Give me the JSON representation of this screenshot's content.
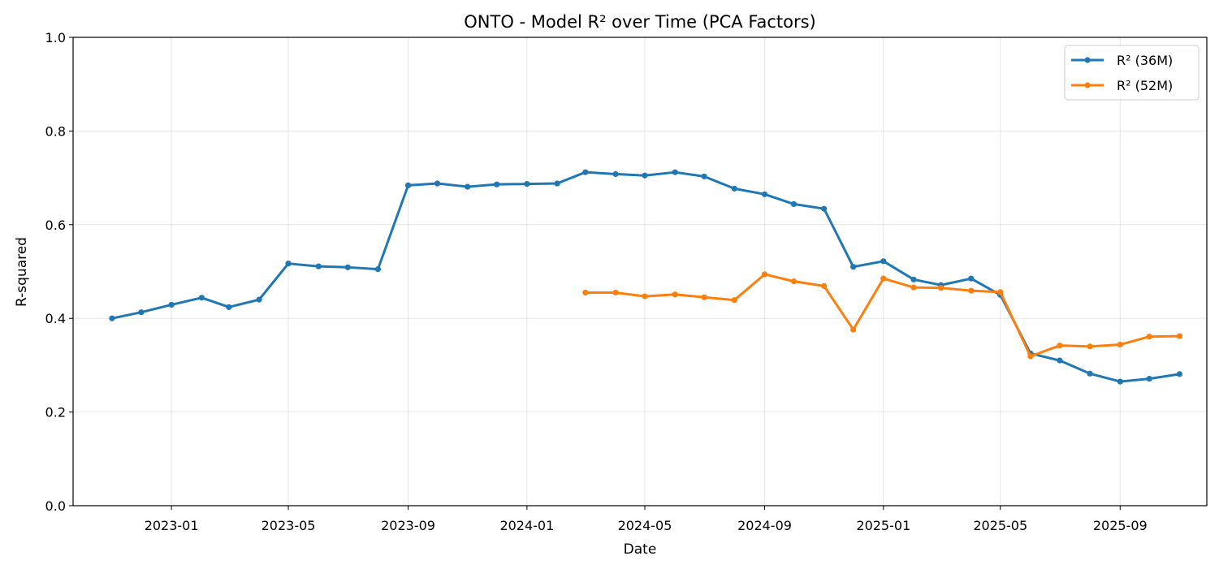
{
  "chart_data": {
    "type": "line",
    "title": "ONTO - Model R² over Time (PCA Factors)",
    "xlabel": "Date",
    "ylabel": "R-squared",
    "xlim": [
      "2022-09-22",
      "2025-11-29"
    ],
    "ylim": [
      0,
      1
    ],
    "yticks": [
      0.0,
      0.2,
      0.4,
      0.6,
      0.8,
      1.0
    ],
    "xticks": [
      "2023-01",
      "2023-05",
      "2023-09",
      "2024-01",
      "2024-05",
      "2024-09",
      "2025-01",
      "2025-05",
      "2025-09"
    ],
    "grid": true,
    "legend_position": "top-right",
    "series": [
      {
        "name": "R² (36M)",
        "color": "#1f77b4",
        "points": [
          [
            "2022-11-01",
            0.4
          ],
          [
            "2022-12-01",
            0.413
          ],
          [
            "2023-01-01",
            0.429
          ],
          [
            "2023-02-01",
            0.444
          ],
          [
            "2023-03-01",
            0.424
          ],
          [
            "2023-04-01",
            0.44
          ],
          [
            "2023-05-01",
            0.517
          ],
          [
            "2023-06-01",
            0.511
          ],
          [
            "2023-07-01",
            0.509
          ],
          [
            "2023-08-01",
            0.505
          ],
          [
            "2023-09-01",
            0.684
          ],
          [
            "2023-10-01",
            0.688
          ],
          [
            "2023-11-01",
            0.681
          ],
          [
            "2023-12-01",
            0.686
          ],
          [
            "2024-01-01",
            0.687
          ],
          [
            "2024-02-01",
            0.688
          ],
          [
            "2024-03-01",
            0.712
          ],
          [
            "2024-04-01",
            0.708
          ],
          [
            "2024-05-01",
            0.705
          ],
          [
            "2024-06-01",
            0.712
          ],
          [
            "2024-07-01",
            0.703
          ],
          [
            "2024-08-01",
            0.677
          ],
          [
            "2024-09-01",
            0.665
          ],
          [
            "2024-10-01",
            0.644
          ],
          [
            "2024-11-01",
            0.634
          ],
          [
            "2024-12-01",
            0.51
          ],
          [
            "2025-01-01",
            0.522
          ],
          [
            "2025-02-01",
            0.483
          ],
          [
            "2025-03-01",
            0.471
          ],
          [
            "2025-04-01",
            0.485
          ],
          [
            "2025-05-01",
            0.45
          ],
          [
            "2025-06-01",
            0.325
          ],
          [
            "2025-07-01",
            0.31
          ],
          [
            "2025-08-01",
            0.282
          ],
          [
            "2025-09-01",
            0.265
          ],
          [
            "2025-10-01",
            0.271
          ],
          [
            "2025-11-01",
            0.281
          ]
        ]
      },
      {
        "name": "R² (52M)",
        "color": "#ff7f0e",
        "points": [
          [
            "2024-03-01",
            0.455
          ],
          [
            "2024-04-01",
            0.455
          ],
          [
            "2024-05-01",
            0.447
          ],
          [
            "2024-06-01",
            0.451
          ],
          [
            "2024-07-01",
            0.445
          ],
          [
            "2024-08-01",
            0.439
          ],
          [
            "2024-09-01",
            0.494
          ],
          [
            "2024-10-01",
            0.479
          ],
          [
            "2024-11-01",
            0.469
          ],
          [
            "2024-12-01",
            0.376
          ],
          [
            "2025-01-01",
            0.485
          ],
          [
            "2025-02-01",
            0.466
          ],
          [
            "2025-03-01",
            0.465
          ],
          [
            "2025-04-01",
            0.459
          ],
          [
            "2025-05-01",
            0.456
          ],
          [
            "2025-06-01",
            0.319
          ],
          [
            "2025-07-01",
            0.342
          ],
          [
            "2025-08-01",
            0.34
          ],
          [
            "2025-09-01",
            0.344
          ],
          [
            "2025-10-01",
            0.361
          ],
          [
            "2025-11-01",
            0.362
          ]
        ]
      }
    ]
  }
}
